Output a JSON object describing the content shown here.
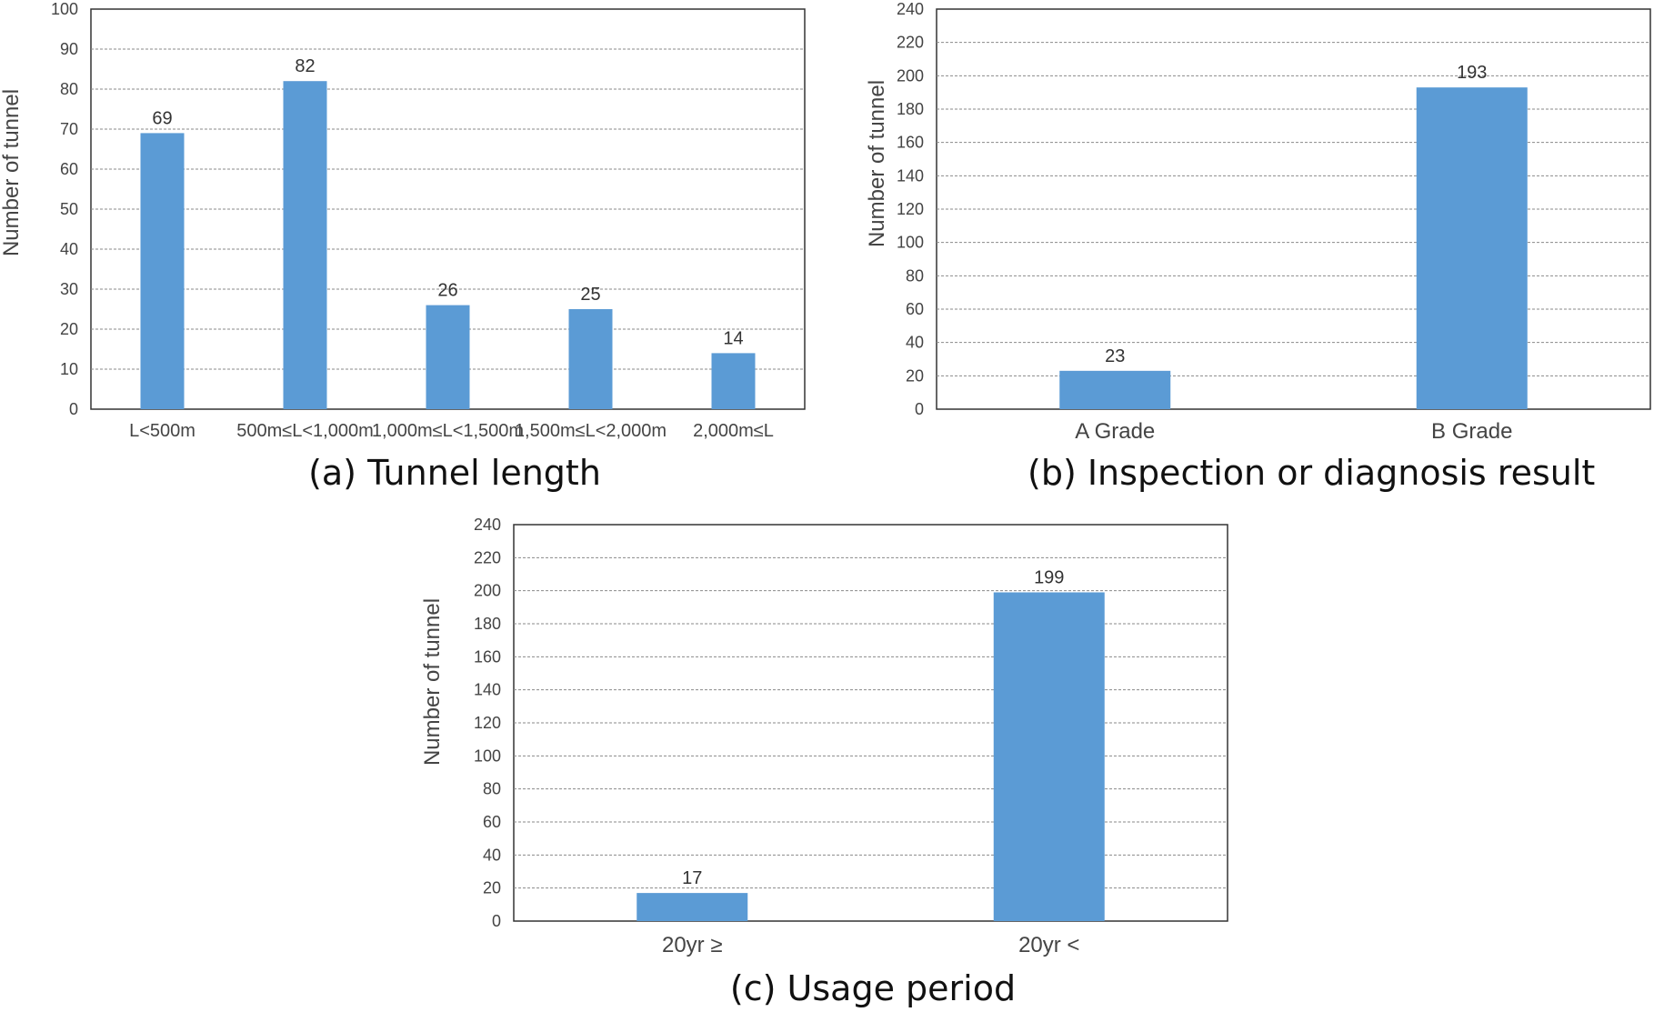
{
  "chart_data": [
    {
      "type": "bar",
      "caption": "(a) Tunnel length",
      "ylabel": "Number of tunnel",
      "ylim": [
        0,
        100
      ],
      "yticks": [
        "0",
        "10",
        "20",
        "30",
        "40",
        "50",
        "60",
        "70",
        "80",
        "90",
        "100"
      ],
      "categories": [
        "L<500m",
        "500m≤L<1,000m",
        "1,000m≤L<1,500m",
        "1,500m≤L<2,000m",
        "2,000m≤L"
      ],
      "values": [
        69,
        82,
        26,
        25,
        14
      ],
      "grid": true,
      "bar_color": "#5b9bd5"
    },
    {
      "type": "bar",
      "caption": "(b) Inspection or diagnosis result",
      "ylabel": "Number of tunnel",
      "ylim": [
        0,
        240
      ],
      "yticks": [
        "0",
        "20",
        "40",
        "60",
        "80",
        "100",
        "120",
        "140",
        "160",
        "180",
        "200",
        "220",
        "240"
      ],
      "categories": [
        "A Grade",
        "B Grade"
      ],
      "values": [
        23,
        193
      ],
      "grid": true,
      "bar_color": "#5b9bd5"
    },
    {
      "type": "bar",
      "caption": "(c) Usage period",
      "ylabel": "Number of tunnel",
      "ylim": [
        0,
        240
      ],
      "yticks": [
        "0",
        "20",
        "40",
        "60",
        "80",
        "100",
        "120",
        "140",
        "160",
        "180",
        "200",
        "220",
        "240"
      ],
      "categories": [
        "20yr ≥",
        "20yr <"
      ],
      "values": [
        17,
        199
      ],
      "grid": true,
      "bar_color": "#5b9bd5"
    }
  ]
}
